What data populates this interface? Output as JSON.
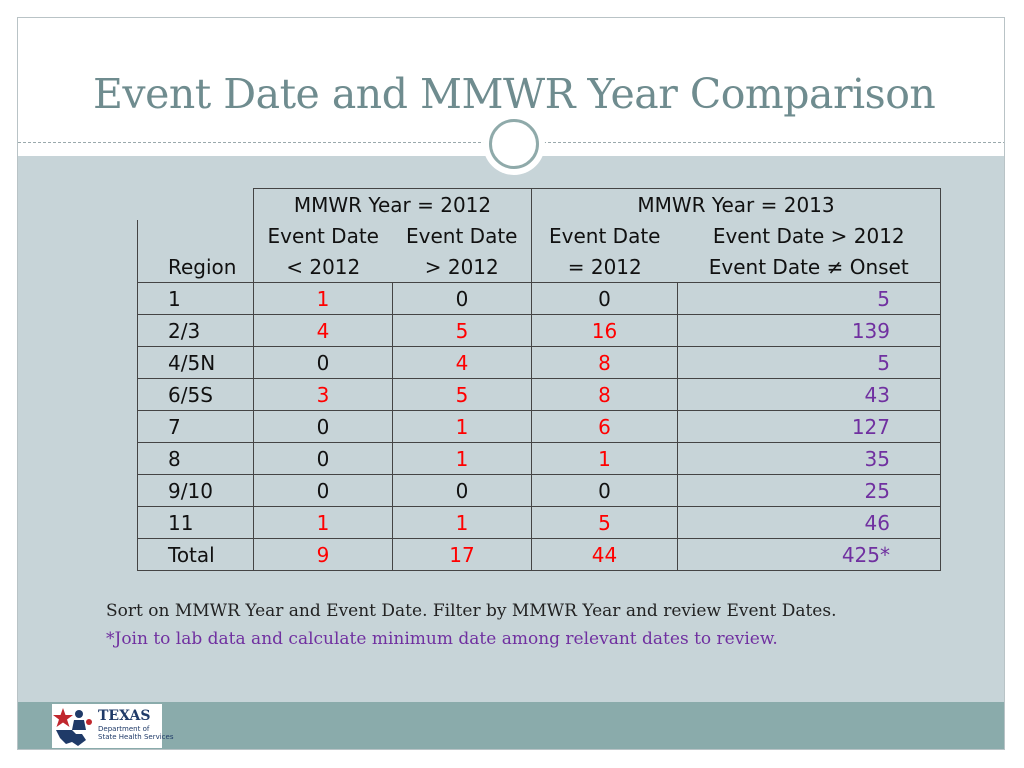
{
  "slide": {
    "title": "Event Date and MMWR Year Comparison",
    "notes": {
      "line1": "Sort on MMWR Year and Event Date. Filter by MMWR Year and review Event Dates.",
      "line2": "*Join to lab data and calculate minimum date among relevant dates to review."
    },
    "logo": {
      "name": "TEXAS",
      "sub1": "Department of",
      "sub2": "State Health Services"
    }
  },
  "table": {
    "group_headers": [
      "MMWR Year = 2012",
      "MMWR Year = 2013"
    ],
    "column_headers": {
      "region": "Region",
      "c1_line1": "Event Date",
      "c1_line2": "< 2012",
      "c2_line1": "Event Date",
      "c2_line2": "> 2012",
      "c3_line1": "Event Date",
      "c3_line2": "= 2012",
      "c4_line1": "Event Date > 2012",
      "c4_line2": "Event Date ≠ Onset"
    },
    "rows": [
      {
        "region": "1",
        "c1": "1",
        "c2": "0",
        "c3": "0",
        "c4": "5"
      },
      {
        "region": "2/3",
        "c1": "4",
        "c2": "5",
        "c3": "16",
        "c4": "139"
      },
      {
        "region": "4/5N",
        "c1": "0",
        "c2": "4",
        "c3": "8",
        "c4": "5"
      },
      {
        "region": "6/5S",
        "c1": "3",
        "c2": "5",
        "c3": "8",
        "c4": "43"
      },
      {
        "region": "7",
        "c1": "0",
        "c2": "1",
        "c3": "6",
        "c4": "127"
      },
      {
        "region": "8",
        "c1": "0",
        "c2": "1",
        "c3": "1",
        "c4": "35"
      },
      {
        "region": "9/10",
        "c1": "0",
        "c2": "0",
        "c3": "0",
        "c4": "25"
      },
      {
        "region": "11",
        "c1": "1",
        "c2": "1",
        "c3": "5",
        "c4": "46"
      },
      {
        "region": "Total",
        "c1": "9",
        "c2": "17",
        "c3": "44",
        "c4": "425*"
      }
    ],
    "colors": {
      "highlight": "#ff0000",
      "onset": "#7030a0"
    }
  }
}
